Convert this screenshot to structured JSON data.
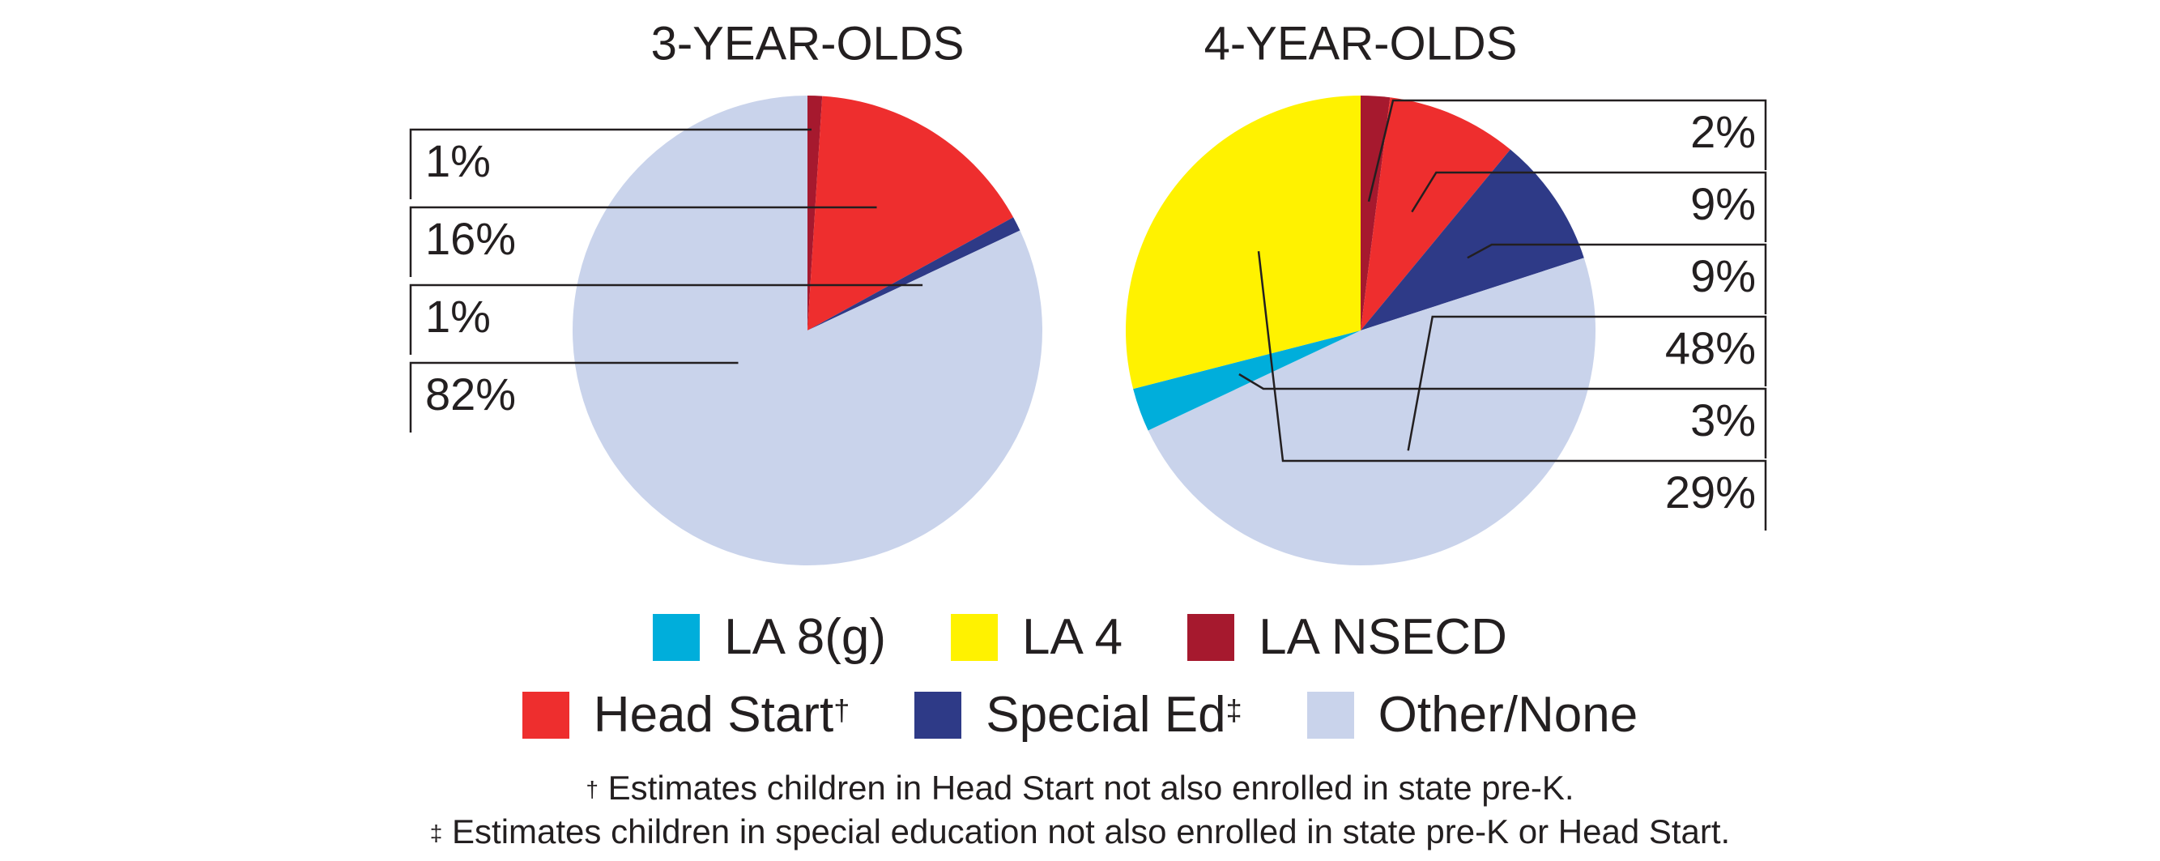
{
  "chart_data": [
    {
      "type": "pie",
      "title": "3-YEAR-OLDS",
      "slices": [
        {
          "label": "LA NSECD",
          "value": 1,
          "display": "1%",
          "color": "#a6192e"
        },
        {
          "label": "Head Start",
          "value": 16,
          "display": "16%",
          "color": "#ee2e2e"
        },
        {
          "label": "Special Ed",
          "value": 1,
          "display": "1%",
          "color": "#2e3a87"
        },
        {
          "label": "Other/None",
          "value": 82,
          "display": "82%",
          "color": "#c9d3eb"
        }
      ]
    },
    {
      "type": "pie",
      "title": "4-YEAR-OLDS",
      "slices": [
        {
          "label": "LA NSECD",
          "value": 2,
          "display": "2%",
          "color": "#a6192e"
        },
        {
          "label": "Head Start",
          "value": 9,
          "display": "9%",
          "color": "#ee2e2e"
        },
        {
          "label": "Special Ed",
          "value": 9,
          "display": "9%",
          "color": "#2e3a87"
        },
        {
          "label": "Other/None",
          "value": 48,
          "display": "48%",
          "color": "#c9d3eb"
        },
        {
          "label": "LA 8(g)",
          "value": 3,
          "display": "3%",
          "color": "#00aedb"
        },
        {
          "label": "LA 4",
          "value": 29,
          "display": "29%",
          "color": "#fff200"
        }
      ]
    }
  ],
  "legend": {
    "row1": [
      {
        "label": "LA 8(g)",
        "mark": "",
        "color": "#00aedb"
      },
      {
        "label": "LA 4",
        "mark": "",
        "color": "#fff200"
      },
      {
        "label": "LA NSECD",
        "mark": "",
        "color": "#a6192e"
      }
    ],
    "row2": [
      {
        "label": "Head Start",
        "mark": "†",
        "color": "#ee2e2e"
      },
      {
        "label": "Special Ed",
        "mark": "‡",
        "color": "#2e3a87"
      },
      {
        "label": "Other/None",
        "mark": "",
        "color": "#c9d3eb"
      }
    ]
  },
  "footnotes": [
    {
      "mark": "†",
      "text": " Estimates children in Head Start not also enrolled in state pre-K."
    },
    {
      "mark": "‡",
      "text": " Estimates children in special education not also enrolled in state pre-K or Head Start."
    }
  ]
}
